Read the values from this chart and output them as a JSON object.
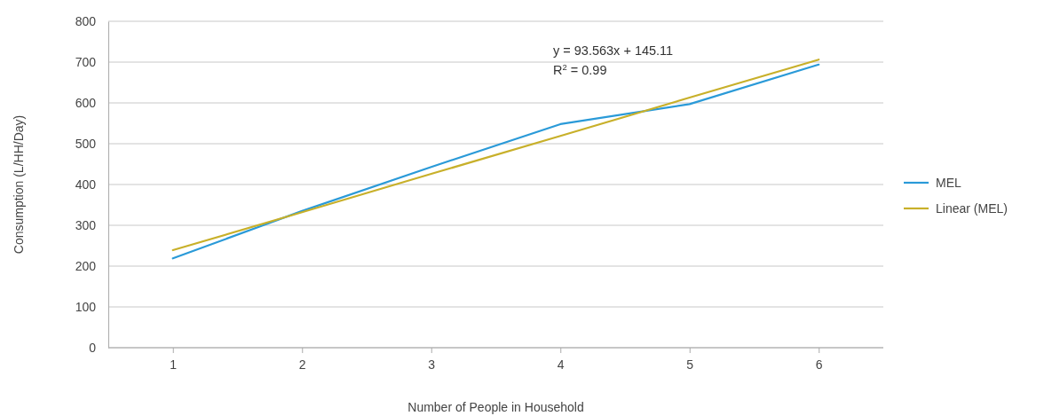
{
  "chart_data": {
    "type": "line",
    "xlabel": "Number of People in Household",
    "ylabel": "Consumption (L/HH/Day)",
    "categories": [
      "1",
      "2",
      "3",
      "4",
      "5",
      "6"
    ],
    "series": [
      {
        "name": "MEL",
        "color": "#2a9ad8",
        "values": [
          219,
          335,
          443,
          548,
          597,
          694
        ]
      },
      {
        "name": "Linear (MEL)",
        "color": "#c8b02a",
        "values": [
          239,
          332,
          426,
          519,
          613,
          706
        ]
      }
    ],
    "ylim": [
      0,
      800
    ],
    "yticks": [
      0,
      100,
      200,
      300,
      400,
      500,
      600,
      700,
      800
    ],
    "grid": "y",
    "legend": "right",
    "line_style": "solid",
    "marker": "none",
    "annotations": [
      "y = 93.563x + 145.11",
      "R$^{2}$ = 0.99"
    ]
  }
}
